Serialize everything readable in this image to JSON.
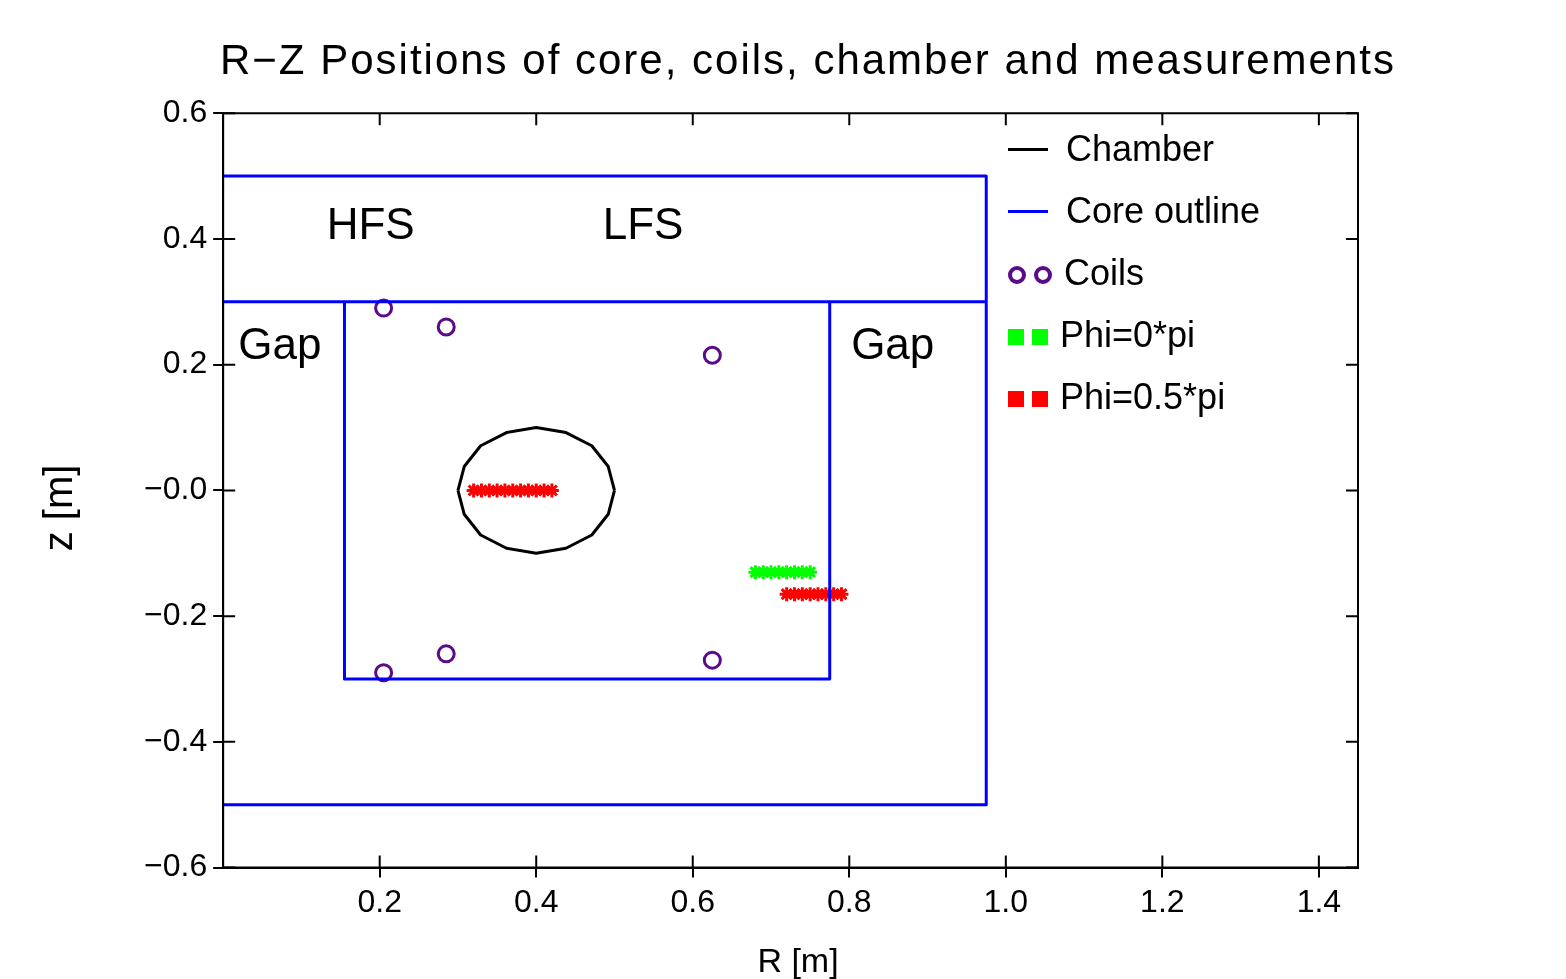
{
  "chart_data": {
    "type": "line",
    "title": "R−Z Positions of core, coils, chamber and measurements",
    "xlabel": "R [m]",
    "ylabel": "z [m]",
    "xlim": [
      0,
      1.45
    ],
    "ylim": [
      -0.6,
      0.6
    ],
    "xticks": [
      0.2,
      0.4,
      0.6,
      {
        "value": 0.8,
        "label": "0.8"
      },
      {
        "value": 1,
        "label": "1.0"
      },
      1.2,
      1.4
    ],
    "yticks": [
      {
        "value": -0.6,
        "label": "−0.6"
      },
      {
        "value": -0.4,
        "label": "−0.4"
      },
      {
        "value": -0.2,
        "label": "−0.2"
      },
      {
        "value": 0,
        "label": "−0.0"
      },
      0.2,
      0.4,
      0.6
    ],
    "grid": false,
    "legend": "top right",
    "series": [
      {
        "name": "Chamber",
        "color": "#000000",
        "x": [
          0.3,
          0.308,
          0.329,
          0.362,
          0.4,
          0.438,
          0.471,
          0.492,
          0.5,
          null,
          0.3,
          0.308,
          0.329,
          0.362,
          0.4,
          0.438,
          0.471,
          0.492,
          0.5
        ],
        "values": [
          0,
          0.038,
          0.071,
          0.092,
          0.1,
          0.092,
          0.071,
          0.038,
          0,
          null,
          0,
          -0.038,
          -0.071,
          -0.092,
          -0.1,
          -0.092,
          -0.071,
          -0.038,
          0
        ]
      },
      {
        "name": "Core outline",
        "color": "#0000ff",
        "x": [
          0,
          0.975,
          0.975,
          0,
          null,
          0,
          0.975,
          null,
          0.155,
          0.155,
          0.775,
          0.775
        ],
        "values": [
          0.5,
          0.5,
          -0.5,
          -0.5,
          null,
          0.3,
          0.3,
          null,
          0.3,
          -0.3,
          -0.3,
          0.3
        ]
      },
      {
        "name": "Coils",
        "type": "scatter",
        "marker": "circle",
        "color": "#5b0a8a",
        "x": [
          0.205,
          0.285,
          0.625,
          0.205,
          0.285,
          0.625
        ],
        "values": [
          0.29,
          0.26,
          0.215,
          -0.29,
          -0.26,
          -0.27
        ]
      },
      {
        "name": "Phi=0*pi",
        "type": "scatter",
        "marker": "cross",
        "color": "#00ff00",
        "x": [
          0.68,
          0.69,
          0.7,
          0.71,
          0.72,
          0.73,
          0.74,
          0.75
        ],
        "values": [
          -0.13,
          -0.13,
          -0.13,
          -0.13,
          -0.13,
          -0.13,
          -0.13,
          -0.13
        ]
      },
      {
        "name": "Phi=0.5*pi",
        "type": "scatter",
        "marker": "cross",
        "color": "#ff0000",
        "x": [
          0.32,
          0.33,
          0.34,
          0.35,
          0.36,
          0.37,
          0.38,
          0.39,
          0.4,
          0.41,
          0.42,
          0.72,
          0.73,
          0.74,
          0.75,
          0.76,
          0.77,
          0.78,
          0.79
        ],
        "values": [
          0,
          0,
          0,
          0,
          0,
          0,
          0,
          0,
          0,
          0,
          0,
          -0.165,
          -0.165,
          -0.165,
          -0.165,
          -0.165,
          -0.165,
          -0.165,
          -0.165
        ]
      }
    ],
    "annotations": [
      "HFS",
      "LFS",
      "Gap",
      "Gap"
    ]
  }
}
